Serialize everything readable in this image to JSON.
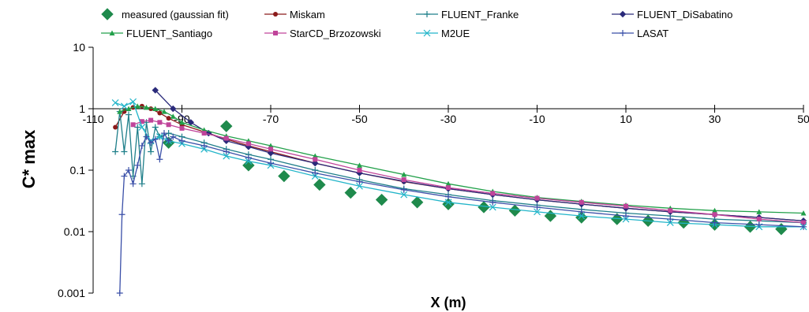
{
  "chart_data": {
    "type": "scatter",
    "title": "",
    "xlabel": "X (m)",
    "ylabel": "C* max",
    "xlim": [
      -110,
      50
    ],
    "ylim": [
      0.001,
      10
    ],
    "y_scale": "log",
    "x_ticks": [
      "-110",
      "-90",
      "-70",
      "-50",
      "-30",
      "-10",
      "10",
      "30",
      "50"
    ],
    "x_tick_values": [
      -110,
      -90,
      -70,
      -50,
      -30,
      -10,
      10,
      30,
      50
    ],
    "y_ticks": [
      "10",
      "1",
      "0.1",
      "0.01",
      "0.001"
    ],
    "y_tick_values": [
      10,
      1,
      0.1,
      0.01,
      0.001
    ],
    "x_axis_crosses_y_at": 1,
    "grid": false,
    "legend_position": "top",
    "series": [
      {
        "name": "measured (gaussian fit)",
        "color": "#1f8a4c",
        "marker": "diamond",
        "line": false,
        "x": [
          -93,
          -80,
          -75,
          -67,
          -59,
          -52,
          -45,
          -37,
          -30,
          -22,
          -15,
          -7,
          0,
          8,
          15,
          23,
          30,
          38,
          45
        ],
        "y": [
          0.28,
          0.52,
          0.12,
          0.08,
          0.058,
          0.043,
          0.033,
          0.03,
          0.028,
          0.025,
          0.022,
          0.018,
          0.017,
          0.016,
          0.015,
          0.014,
          0.013,
          0.012,
          0.011
        ]
      },
      {
        "name": "Miskam",
        "color": "#8b1a1a",
        "marker": "circle",
        "line": true,
        "x": [
          -105,
          -103,
          -101,
          -99,
          -97,
          -95,
          -93,
          -90,
          -85,
          -80,
          -75,
          -70,
          -60,
          -50,
          -40,
          -30,
          -20,
          -10,
          0,
          10,
          20,
          30,
          40,
          50
        ],
        "y": [
          0.5,
          0.9,
          1.05,
          1.1,
          1.0,
          0.85,
          0.7,
          0.55,
          0.42,
          0.32,
          0.25,
          0.2,
          0.13,
          0.09,
          0.065,
          0.05,
          0.04,
          0.033,
          0.028,
          0.024,
          0.021,
          0.019,
          0.017,
          0.015
        ]
      },
      {
        "name": "FLUENT_Franke",
        "color": "#1f7f8a",
        "marker": "plus",
        "line": true,
        "x": [
          -105,
          -104,
          -103,
          -102,
          -101,
          -100,
          -99,
          -98,
          -97,
          -96,
          -95,
          -93,
          -90,
          -85,
          -80,
          -75,
          -70,
          -60,
          -50,
          -40,
          -30,
          -20,
          -10,
          0,
          10,
          20,
          30,
          40,
          50
        ],
        "y": [
          0.2,
          0.9,
          0.2,
          0.8,
          0.08,
          0.5,
          0.06,
          0.6,
          0.2,
          0.5,
          0.35,
          0.4,
          0.35,
          0.28,
          0.22,
          0.18,
          0.15,
          0.1,
          0.07,
          0.05,
          0.04,
          0.032,
          0.027,
          0.023,
          0.02,
          0.018,
          0.016,
          0.015,
          0.014
        ]
      },
      {
        "name": "FLUENT_DiSabatino",
        "color": "#2a2a7a",
        "marker": "diamond-small",
        "line": true,
        "x": [
          -96,
          -92,
          -88,
          -84,
          -80,
          -75,
          -70,
          -60,
          -50,
          -40,
          -30,
          -20,
          -10,
          0,
          10,
          20,
          30,
          40,
          50
        ],
        "y": [
          2.0,
          1.0,
          0.6,
          0.4,
          0.3,
          0.24,
          0.19,
          0.13,
          0.09,
          0.066,
          0.05,
          0.04,
          0.033,
          0.028,
          0.024,
          0.021,
          0.019,
          0.017,
          0.015
        ]
      },
      {
        "name": "FLUENT_Santiago",
        "color": "#22a04a",
        "marker": "triangle",
        "line": true,
        "x": [
          -104,
          -102,
          -100,
          -98,
          -96,
          -94,
          -92,
          -90,
          -85,
          -80,
          -75,
          -70,
          -60,
          -50,
          -40,
          -30,
          -20,
          -10,
          0,
          10,
          20,
          30,
          40,
          50
        ],
        "y": [
          0.9,
          1.0,
          1.1,
          1.05,
          1.0,
          0.9,
          0.75,
          0.6,
          0.45,
          0.36,
          0.3,
          0.25,
          0.17,
          0.12,
          0.085,
          0.06,
          0.045,
          0.036,
          0.031,
          0.027,
          0.024,
          0.022,
          0.021,
          0.02
        ]
      },
      {
        "name": "StarCD_Brzozowski",
        "color": "#c0449a",
        "marker": "square",
        "line": true,
        "x": [
          -101,
          -99,
          -97,
          -95,
          -93,
          -90,
          -85,
          -80,
          -75,
          -70,
          -60,
          -50,
          -40,
          -30,
          -20,
          -10,
          0,
          10,
          20,
          30,
          40,
          50
        ],
        "y": [
          0.55,
          0.62,
          0.65,
          0.6,
          0.55,
          0.48,
          0.4,
          0.33,
          0.27,
          0.22,
          0.15,
          0.1,
          0.07,
          0.052,
          0.042,
          0.035,
          0.03,
          0.026,
          0.022,
          0.019,
          0.016,
          0.014
        ]
      },
      {
        "name": "M2UE",
        "color": "#22b5c9",
        "marker": "cross",
        "line": true,
        "x": [
          -105,
          -103,
          -101,
          -99,
          -97,
          -95,
          -93,
          -90,
          -85,
          -80,
          -75,
          -70,
          -60,
          -50,
          -40,
          -30,
          -20,
          -10,
          0,
          10,
          20,
          30,
          40,
          50
        ],
        "y": [
          1.25,
          1.1,
          1.3,
          0.5,
          0.3,
          0.35,
          0.3,
          0.27,
          0.22,
          0.17,
          0.14,
          0.12,
          0.08,
          0.055,
          0.04,
          0.03,
          0.025,
          0.021,
          0.018,
          0.016,
          0.014,
          0.013,
          0.012,
          0.012
        ]
      },
      {
        "name": "LASAT",
        "color": "#3a4fa8",
        "marker": "plus",
        "line": true,
        "x": [
          -104,
          -103.5,
          -103,
          -102,
          -101,
          -100,
          -99,
          -98,
          -97,
          -96,
          -95,
          -94,
          -93,
          -92,
          -90,
          -85,
          -80,
          -75,
          -70,
          -60,
          -50,
          -40,
          -30,
          -20,
          -10,
          0,
          10,
          20,
          30,
          40,
          50
        ],
        "y": [
          0.001,
          0.019,
          0.08,
          0.1,
          0.06,
          0.12,
          0.25,
          0.35,
          0.28,
          0.32,
          0.15,
          0.4,
          0.3,
          0.35,
          0.3,
          0.25,
          0.2,
          0.16,
          0.13,
          0.09,
          0.065,
          0.048,
          0.037,
          0.03,
          0.025,
          0.021,
          0.018,
          0.016,
          0.014,
          0.013,
          0.012
        ]
      }
    ]
  }
}
